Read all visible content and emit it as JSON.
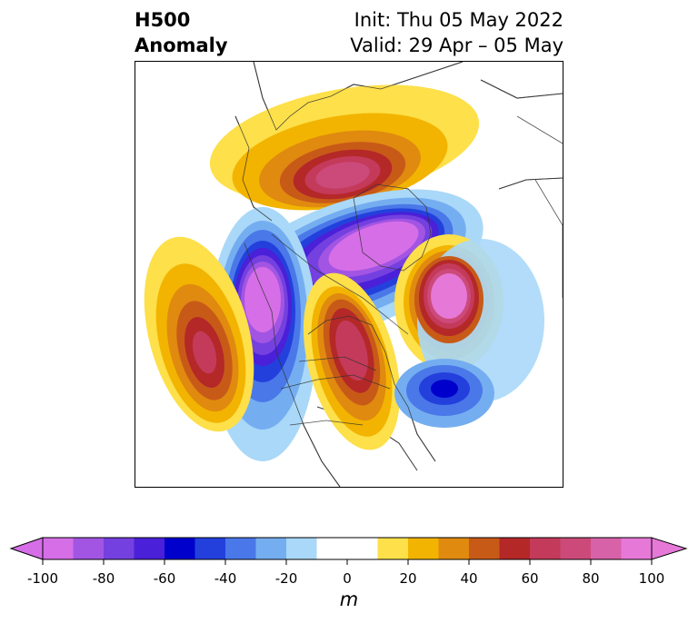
{
  "title": {
    "left_line1": "H500",
    "left_line2": "Anomaly",
    "right_line1": "Init: Thu 05 May 2022",
    "right_line2": "Valid: 29 Apr – 05 May"
  },
  "colorbar": {
    "unit": "m",
    "ticks": [
      "-100",
      "-80",
      "-60",
      "-40",
      "-20",
      "0",
      "20",
      "40",
      "60",
      "80",
      "100"
    ],
    "range": [
      -100,
      100
    ],
    "step": 10,
    "extend": "both",
    "colors": [
      "#d66ee8",
      "#a255e3",
      "#7440df",
      "#4a20d8",
      "#0000cc",
      "#2340dd",
      "#4a78e8",
      "#75aef0",
      "#aad8f8",
      "#ffffff",
      "#ffffff",
      "#fde04a",
      "#f2b400",
      "#e08a10",
      "#c85a18",
      "#b42828",
      "#c43a5a",
      "#cc4a7a",
      "#d862a8",
      "#e678d8"
    ],
    "min_color": "#d66ee8",
    "max_color": "#e678d8"
  },
  "map": {
    "projection": "polar stereographic (North America / Arctic)",
    "anomalies": [
      {
        "name": "ridge-north-siberia",
        "sign": "positive",
        "peak": 80
      },
      {
        "name": "trough-arctic",
        "sign": "negative",
        "peak": -100
      },
      {
        "name": "trough-alaska-west",
        "sign": "negative",
        "peak": -100
      },
      {
        "name": "ridge-north-pacific",
        "sign": "positive",
        "peak": 80
      },
      {
        "name": "ridge-central-canada",
        "sign": "positive",
        "peak": 80
      },
      {
        "name": "ridge-greenland",
        "sign": "positive",
        "peak": 100
      },
      {
        "name": "trough-north-atlantic",
        "sign": "negative",
        "peak": -60
      }
    ]
  }
}
